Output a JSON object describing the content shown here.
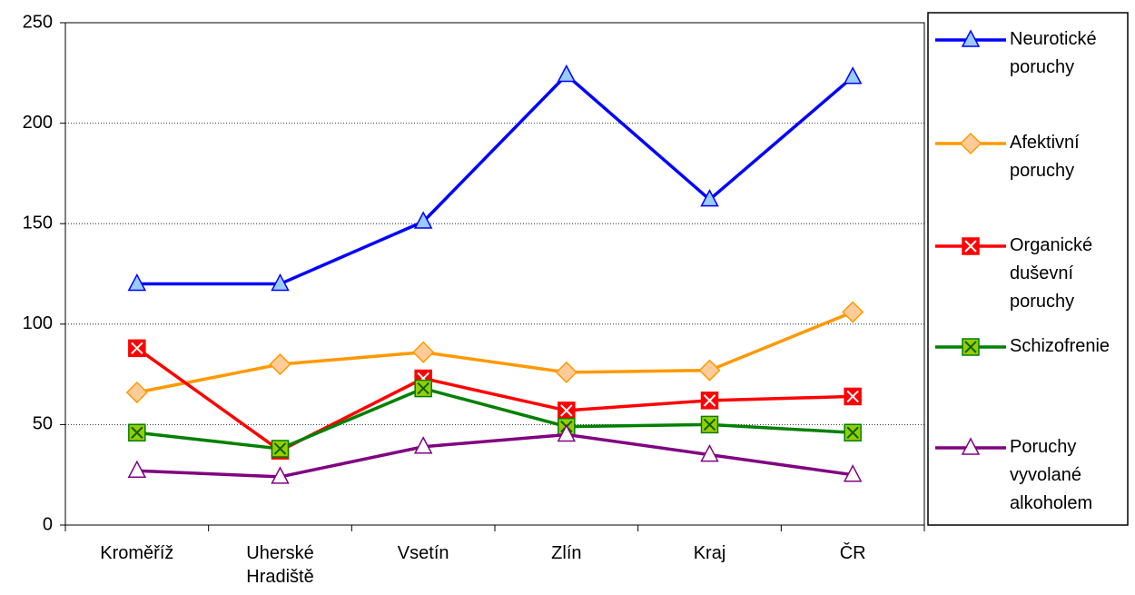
{
  "chart_data": {
    "type": "line",
    "categories": [
      "Kroměříž",
      "Uherské Hradiště",
      "Vsetín",
      "Zlín",
      "Kraj",
      "ČR"
    ],
    "series": [
      {
        "name": "Neurotické poruchy",
        "color": "#0000ff",
        "marker": "triangle",
        "marker_fill": "#99ccff",
        "values": [
          120,
          120,
          151,
          224,
          162,
          223
        ]
      },
      {
        "name": "Afektivní poruchy",
        "color": "#ff9900",
        "marker": "diamond",
        "marker_fill": "#ffcc99",
        "values": [
          66,
          80,
          86,
          76,
          77,
          106
        ]
      },
      {
        "name": "Organické duševní poruchy",
        "color": "#ff0000",
        "marker": "xsquare",
        "marker_fill": "#ff0000",
        "values": [
          88,
          37,
          73,
          57,
          62,
          64
        ]
      },
      {
        "name": "Schizofrenie",
        "color": "#008000",
        "marker": "xsquare",
        "marker_fill": "#99cc00",
        "values": [
          46,
          38,
          68,
          49,
          50,
          46
        ]
      },
      {
        "name": "Poruchy vyvolané alkoholem",
        "color": "#800080",
        "marker": "triangle",
        "marker_fill": "#ffffff",
        "values": [
          27,
          24,
          39,
          45,
          35,
          25
        ]
      }
    ],
    "ylim": [
      0,
      250
    ],
    "yticks": [
      0,
      50,
      100,
      150,
      200,
      250
    ],
    "grid": true,
    "legend": "right"
  }
}
